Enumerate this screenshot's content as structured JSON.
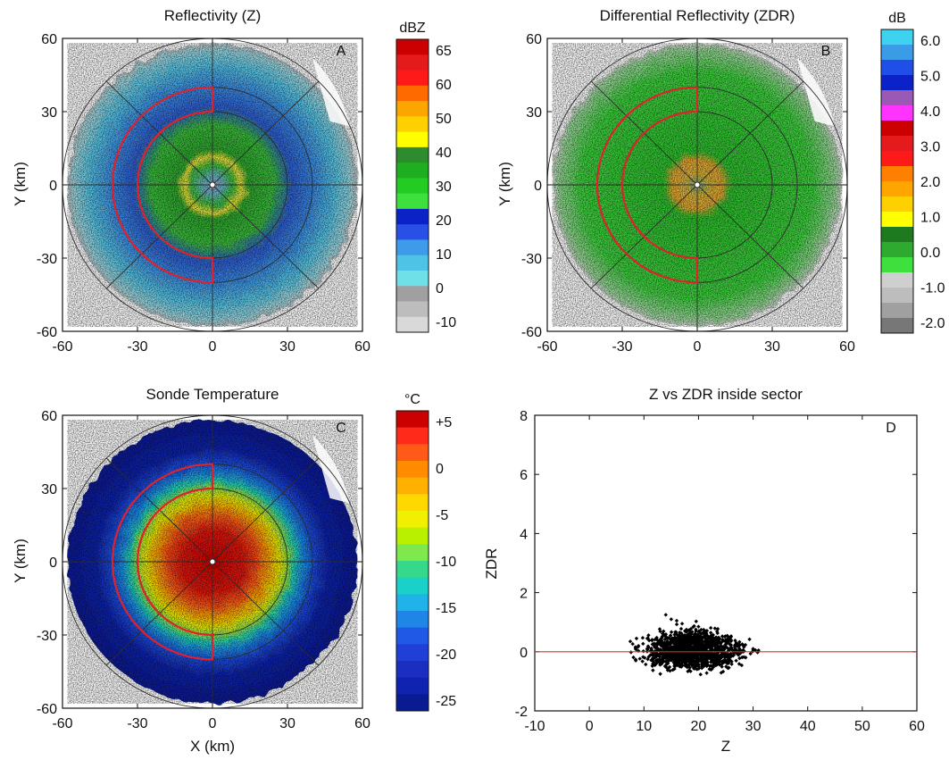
{
  "colors": {
    "sector": "#e0212b",
    "ref_line": "#c0392b",
    "ring": "#2b2b2b",
    "point": "#000000"
  },
  "chart_data": [
    {
      "panel": "A",
      "type": "heatmap",
      "title": "Reflectivity (Z)",
      "ylabel": "Y (km)",
      "xlabel": "",
      "xlim": [
        -60,
        60
      ],
      "ylim": [
        -60,
        60
      ],
      "xticks": [
        "-60",
        "-30",
        "0",
        "30",
        "60"
      ],
      "yticks": [
        "60",
        "30",
        "0",
        "-30",
        "-60"
      ],
      "colorbar": {
        "unit": "dBZ",
        "labels": [
          "65",
          "60",
          "50",
          "40",
          "30",
          "20",
          "10",
          "0",
          "-10"
        ],
        "colors": [
          "#cc0000",
          "#e41a1c",
          "#ff1a1a",
          "#ff6a00",
          "#ffa500",
          "#ffd000",
          "#ffff00",
          "#2e8b2e",
          "#1fae1f",
          "#22cc22",
          "#3ee03e",
          "#0a22c8",
          "#2850e6",
          "#3d9be9",
          "#4fc3e6",
          "#6fe0e6",
          "#a0a0a0",
          "#bdbdbd",
          "#d9d9d9"
        ]
      },
      "range_rings_km": [
        30,
        40,
        60
      ],
      "sector": {
        "inner_km": 30,
        "outer_km": 40,
        "from_deg": 90,
        "to_deg": 270
      }
    },
    {
      "panel": "B",
      "type": "heatmap",
      "title": "Differential Reflectivity (ZDR)",
      "ylabel": "Y (km)",
      "xlabel": "",
      "xlim": [
        -60,
        60
      ],
      "ylim": [
        -60,
        60
      ],
      "xticks": [
        "-60",
        "-30",
        "0",
        "30",
        "60"
      ],
      "yticks": [
        "60",
        "30",
        "0",
        "-30",
        "-60"
      ],
      "colorbar": {
        "unit": "dB",
        "labels": [
          "6.0",
          "5.0",
          "4.0",
          "3.0",
          "2.0",
          "1.0",
          "0.0",
          "-1.0",
          "-2.0"
        ],
        "colors": [
          "#3cd2f0",
          "#3a9be6",
          "#1f4fe6",
          "#0a22c8",
          "#9b59b6",
          "#ff33ff",
          "#cc0000",
          "#e41a1c",
          "#ff1a1a",
          "#ff7f00",
          "#ffa500",
          "#ffd000",
          "#ffff00",
          "#1e7a1e",
          "#2eaa2e",
          "#3ee03e",
          "#cfcfcf",
          "#bdbdbd",
          "#a0a0a0",
          "#777777"
        ]
      },
      "range_rings_km": [
        30,
        40,
        60
      ],
      "sector": {
        "inner_km": 30,
        "outer_km": 40,
        "from_deg": 90,
        "to_deg": 270
      }
    },
    {
      "panel": "C",
      "type": "heatmap",
      "title": "Sonde Temperature",
      "ylabel": "Y (km)",
      "xlabel": "X (km)",
      "xlim": [
        -60,
        60
      ],
      "ylim": [
        -60,
        60
      ],
      "xticks": [
        "-60",
        "-30",
        "0",
        "30",
        "60"
      ],
      "yticks": [
        "60",
        "30",
        "0",
        "-30",
        "-60"
      ],
      "colorbar": {
        "unit": "°C",
        "labels": [
          "+5",
          "0",
          "-5",
          "-10",
          "-15",
          "-20",
          "-25"
        ],
        "colors": [
          "#cc0000",
          "#ff2a1a",
          "#ff5a1a",
          "#ff8c00",
          "#ffb000",
          "#ffd800",
          "#f0f000",
          "#b8f000",
          "#7fe84d",
          "#36d98a",
          "#19d1c8",
          "#1fb3e8",
          "#1f86e8",
          "#1f5ae6",
          "#1f3fd6",
          "#1a2fc2",
          "#1023b0",
          "#0a1a90"
        ]
      },
      "range_rings_km": [
        30,
        40,
        60
      ],
      "sector": {
        "inner_km": 30,
        "outer_km": 40,
        "from_deg": 90,
        "to_deg": 270
      }
    },
    {
      "panel": "D",
      "type": "scatter",
      "title": "Z vs ZDR inside sector",
      "xlabel": "Z",
      "ylabel": "ZDR",
      "xlim": [
        -10,
        60
      ],
      "ylim": [
        -2,
        8
      ],
      "xticks": [
        "-10",
        "0",
        "10",
        "20",
        "30",
        "40",
        "50",
        "60"
      ],
      "yticks": [
        "8",
        "6",
        "4",
        "2",
        "0",
        "-2"
      ],
      "reference_line_y": 0,
      "cluster": {
        "z_min": 7,
        "z_max": 32,
        "z_mode": 19,
        "zdr_mean": 0.05,
        "zdr_min": -0.8,
        "zdr_max": 1.3
      }
    }
  ]
}
